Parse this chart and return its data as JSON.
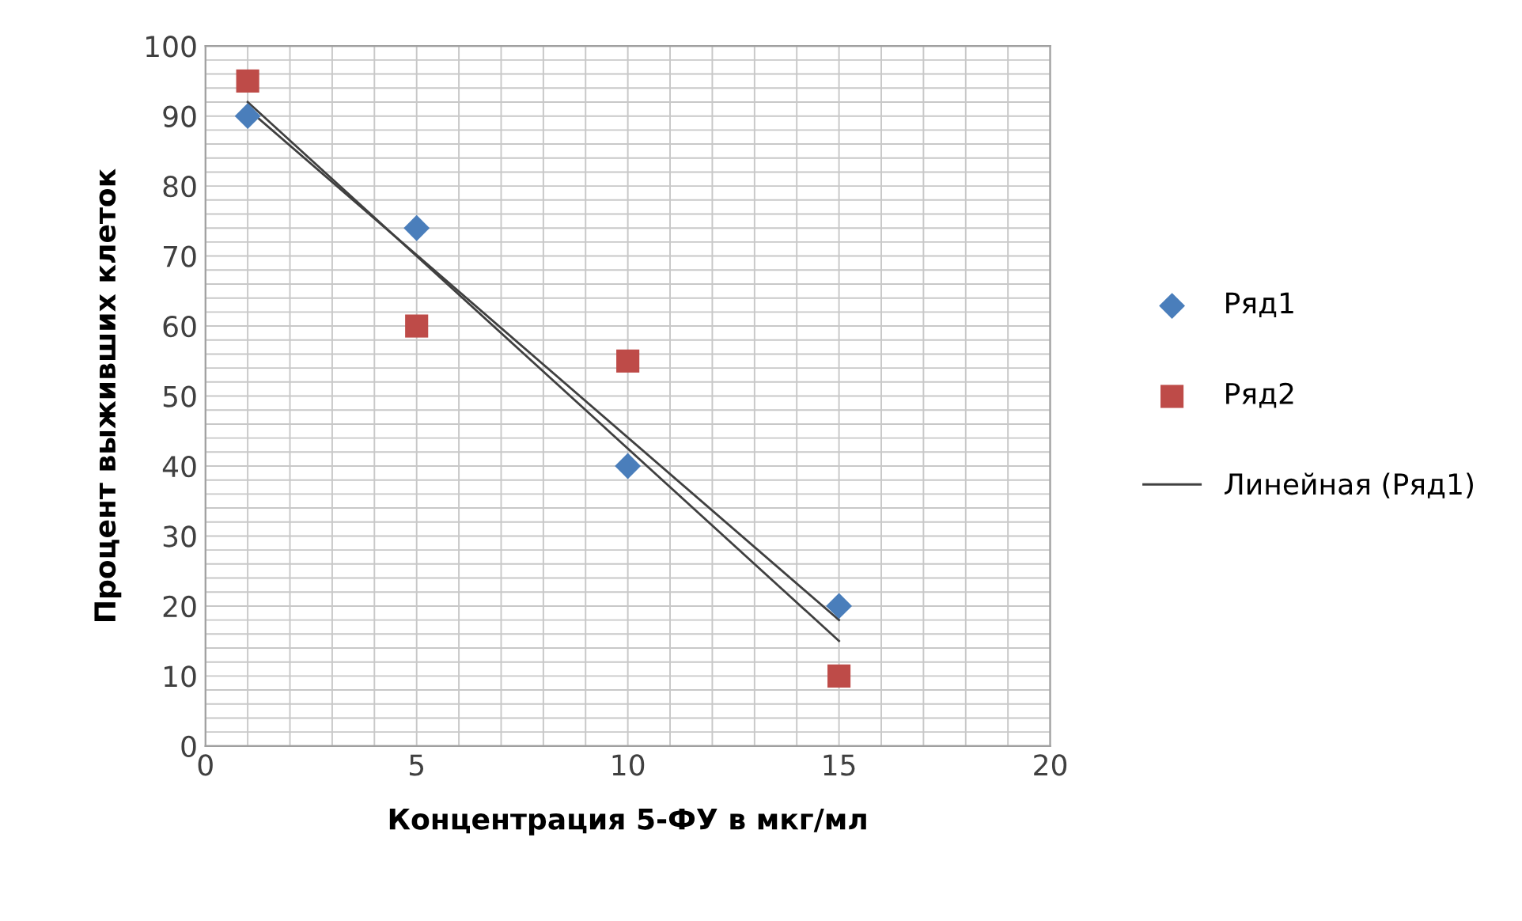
{
  "chart_data": {
    "type": "scatter",
    "xlabel": "Концентрация 5-ФУ в мкг/мл",
    "ylabel": "Процент выживших клеток",
    "xlim": [
      0,
      20
    ],
    "xticks": [
      0,
      5,
      10,
      15,
      20
    ],
    "ylim": [
      0,
      100
    ],
    "yticks": [
      0,
      10,
      20,
      30,
      40,
      50,
      60,
      70,
      80,
      90,
      100
    ],
    "grid": true,
    "legend": "right",
    "series": [
      {
        "name": "Ряд1",
        "color": "#4a7ebb",
        "marker": "diamond",
        "x": [
          1,
          5,
          10,
          15
        ],
        "values": [
          90,
          74,
          40,
          20
        ]
      },
      {
        "name": "Ряд2",
        "color": "#be4b48",
        "marker": "square",
        "x": [
          1,
          5,
          10,
          15
        ],
        "values": [
          95,
          60,
          55,
          10
        ]
      },
      {
        "name": "Линейная (Ряд1)",
        "type": "line",
        "color": "#404040",
        "marker": "none",
        "x": [
          1,
          15
        ],
        "values": [
          91,
          18
        ]
      },
      {
        "type": "line",
        "color": "#404040",
        "marker": "none",
        "x": [
          1,
          15
        ],
        "values": [
          92,
          15
        ]
      }
    ]
  }
}
